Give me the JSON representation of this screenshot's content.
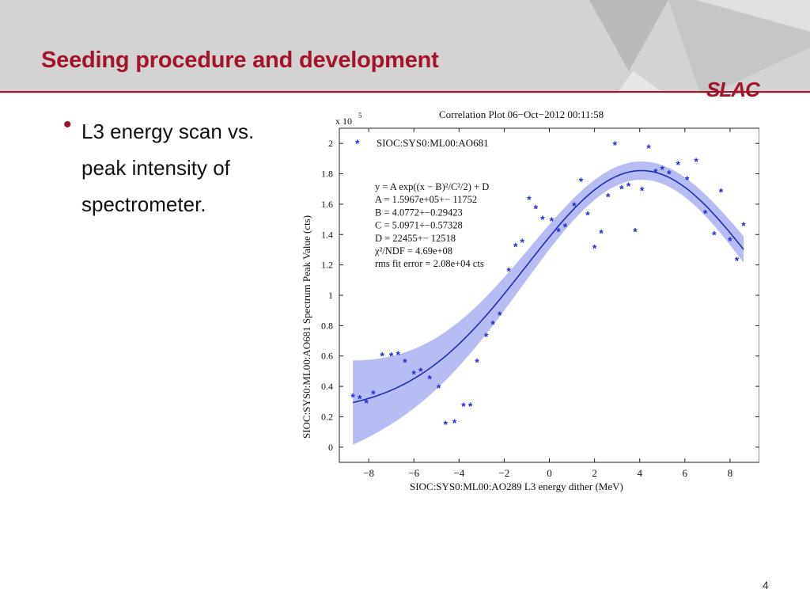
{
  "slide": {
    "title": "Seeding procedure and development",
    "logo": "SLAC",
    "bullet": "L3 energy scan vs. peak intensity of spectrometer.",
    "page_number": "4"
  },
  "colors": {
    "accent": "#a3132a",
    "header_bg": "#d3d3d3",
    "marker": "#1f2fd6",
    "fit_line": "#1f2fb0",
    "band": "#aab0f2"
  },
  "chart_data": {
    "type": "scatter",
    "title": "Correlation Plot 06−Oct−2012 00:11:58",
    "xlabel": "SIOC:SYS0:ML00:AO289 L3 energy dither (MeV)",
    "ylabel": "SIOC:SYS0:ML00:AO681 Spectrum Peak Value (cts)",
    "y_multiplier": "x 10",
    "y_multiplier_exp": "5",
    "xlim": [
      -9.3,
      9.3
    ],
    "ylim": [
      -0.1,
      2.1
    ],
    "x_ticks": [
      -8,
      -6,
      -4,
      -2,
      0,
      2,
      4,
      6,
      8
    ],
    "x_tick_labels": [
      "−8",
      "−6",
      "−4",
      "−2",
      "0",
      "2",
      "4",
      "6",
      "8"
    ],
    "y_ticks": [
      0,
      0.2,
      0.4,
      0.6,
      0.8,
      1,
      1.2,
      1.4,
      1.6,
      1.8,
      2
    ],
    "y_tick_labels": [
      "0",
      "0.2",
      "0.4",
      "0.6",
      "0.8",
      "1",
      "1.2",
      "1.4",
      "1.6",
      "1.8",
      "2"
    ],
    "legend": "top-left",
    "series": [
      {
        "name": "SIOC:SYS0:ML00:AO681",
        "points": [
          [
            -8.7,
            0.33
          ],
          [
            -8.4,
            0.32
          ],
          [
            -8.1,
            0.29
          ],
          [
            -7.8,
            0.35
          ],
          [
            -7.4,
            0.6
          ],
          [
            -7.0,
            0.6
          ],
          [
            -6.7,
            0.61
          ],
          [
            -6.4,
            0.56
          ],
          [
            -6.0,
            0.48
          ],
          [
            -5.7,
            0.5
          ],
          [
            -5.3,
            0.45
          ],
          [
            -4.9,
            0.39
          ],
          [
            -4.6,
            0.15
          ],
          [
            -4.2,
            0.16
          ],
          [
            -3.8,
            0.27
          ],
          [
            -3.5,
            0.27
          ],
          [
            -3.2,
            0.56
          ],
          [
            -2.8,
            0.73
          ],
          [
            -2.5,
            0.81
          ],
          [
            -2.2,
            0.87
          ],
          [
            -1.8,
            1.16
          ],
          [
            -1.5,
            1.32
          ],
          [
            -1.2,
            1.35
          ],
          [
            -0.9,
            1.63
          ],
          [
            -0.6,
            1.57
          ],
          [
            -0.3,
            1.5
          ],
          [
            0.1,
            1.49
          ],
          [
            0.4,
            1.42
          ],
          [
            0.7,
            1.45
          ],
          [
            1.1,
            1.59
          ],
          [
            1.4,
            1.75
          ],
          [
            1.7,
            1.53
          ],
          [
            2.0,
            1.31
          ],
          [
            2.3,
            1.41
          ],
          [
            2.6,
            1.65
          ],
          [
            2.9,
            1.99
          ],
          [
            3.2,
            1.7
          ],
          [
            3.5,
            1.72
          ],
          [
            3.8,
            1.42
          ],
          [
            4.1,
            1.69
          ],
          [
            4.4,
            1.97
          ],
          [
            4.7,
            1.81
          ],
          [
            5.0,
            1.83
          ],
          [
            5.3,
            1.8
          ],
          [
            5.7,
            1.86
          ],
          [
            6.1,
            1.76
          ],
          [
            6.5,
            1.88
          ],
          [
            6.9,
            1.54
          ],
          [
            7.3,
            1.4
          ],
          [
            7.6,
            1.68
          ],
          [
            8.0,
            1.36
          ],
          [
            8.3,
            1.23
          ],
          [
            8.6,
            1.46
          ]
        ]
      }
    ],
    "fit": {
      "model": "gaussian",
      "A": 159670,
      "B": 4.0772,
      "C": 5.0971,
      "D": 22455,
      "x_range": [
        -8.7,
        8.6
      ]
    },
    "legend_label": "SIOC:SYS0:ML00:AO681",
    "annotations": [
      "y = A exp((x − B)²/C²/2) + D",
      "A = 1.5967e+05+−  11752",
      "B =  4.0772+−0.29423",
      "C =  5.0971+−0.57328",
      "D =   22455+−  12518",
      "χ²/NDF = 4.69e+08",
      "rms fit error =  2.08e+04 cts"
    ]
  }
}
